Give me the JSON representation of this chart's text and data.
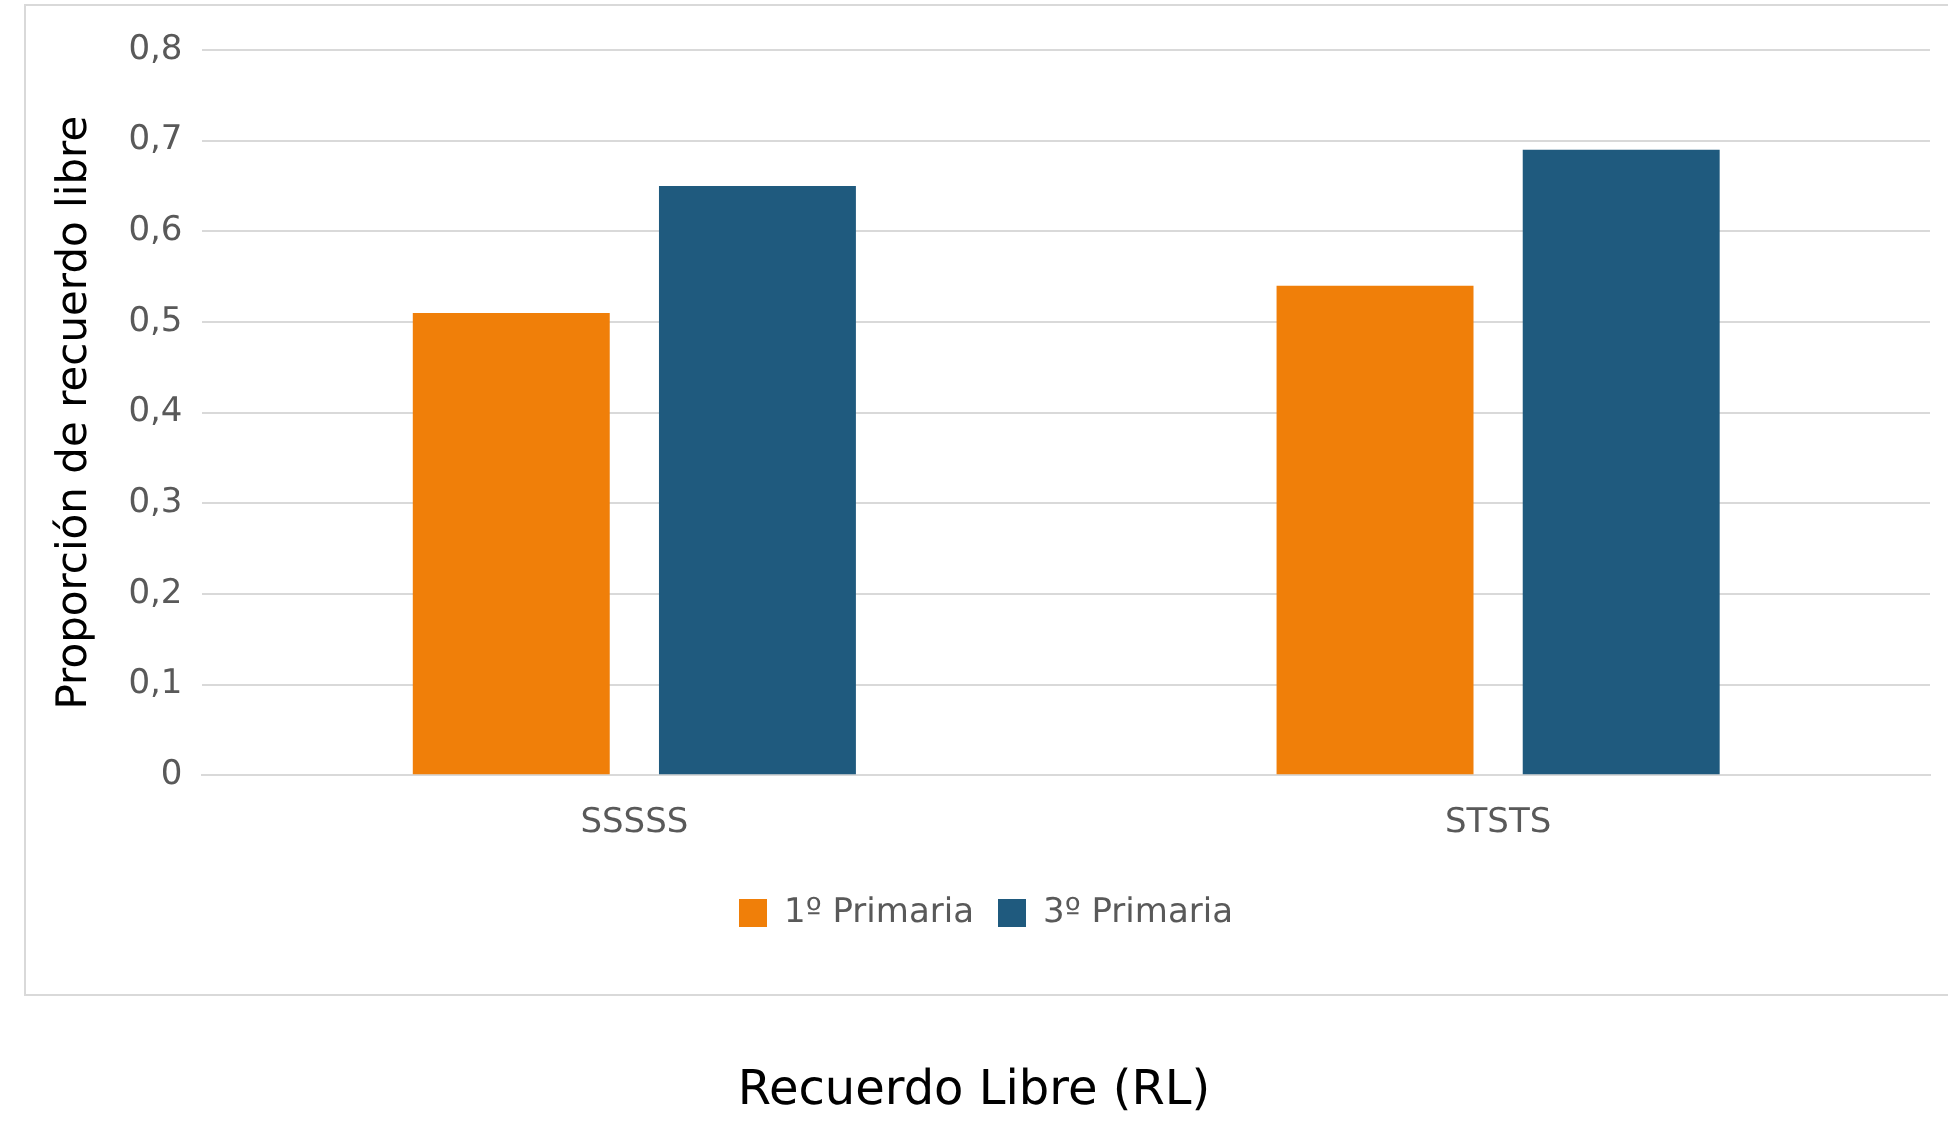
{
  "chart_data": {
    "type": "bar",
    "xlabel": "Recuerdo Libre (RL)",
    "ylabel": "Proporción de recuerdo libre",
    "categories": [
      "SSSSS",
      "STSTS"
    ],
    "series": [
      {
        "name": "1º Primaria",
        "color": "#f07f09",
        "values": [
          0.51,
          0.54
        ]
      },
      {
        "name": "3º Primaria",
        "color": "#1f5a7e",
        "values": [
          0.65,
          0.69
        ]
      }
    ],
    "ylim": [
      0,
      0.8
    ],
    "yticks": [
      {
        "value": 0,
        "label": "0"
      },
      {
        "value": 0.1,
        "label": "0,1"
      },
      {
        "value": 0.2,
        "label": "0,2"
      },
      {
        "value": 0.3,
        "label": "0,3"
      },
      {
        "value": 0.4,
        "label": "0,4"
      },
      {
        "value": 0.5,
        "label": "0,5"
      },
      {
        "value": 0.6,
        "label": "0,6"
      },
      {
        "value": 0.7,
        "label": "0,7"
      },
      {
        "value": 0.8,
        "label": "0,8"
      }
    ],
    "grid": "y",
    "legend": "bottom"
  }
}
